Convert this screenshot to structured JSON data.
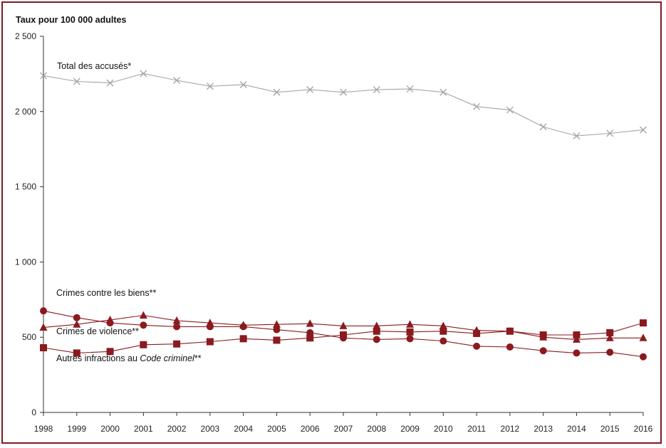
{
  "chart_data": {
    "type": "line",
    "title": "",
    "ylabel": "Taux pour 100 000 adultes",
    "xlabel": "",
    "ylim": [
      0,
      2500
    ],
    "yticks": [
      0,
      500,
      1000,
      1500,
      2000,
      2500
    ],
    "ytick_labels": [
      "0",
      "500",
      "1 000",
      "1 500",
      "2 000",
      "2 500"
    ],
    "x": [
      "1998",
      "1999",
      "2000",
      "2001",
      "2002",
      "2003",
      "2004",
      "2005",
      "2006",
      "2007",
      "2008",
      "2009",
      "2010",
      "2011",
      "2012",
      "2013",
      "2014",
      "2015",
      "2016"
    ],
    "grid": false,
    "legend": "inline-labels",
    "series": [
      {
        "name": "Total des accusés*",
        "marker": "x",
        "color": "#a6a6a6",
        "values": [
          2238,
          2200,
          2190,
          2252,
          2207,
          2168,
          2178,
          2128,
          2145,
          2128,
          2145,
          2150,
          2128,
          2033,
          2010,
          1898,
          1838,
          1855,
          1878
        ]
      },
      {
        "name": "Crimes contre les biens**",
        "marker": "circle",
        "color": "#8b1a1f",
        "values": [
          675,
          630,
          595,
          580,
          570,
          570,
          570,
          550,
          530,
          495,
          485,
          490,
          475,
          440,
          435,
          410,
          395,
          400,
          370
        ]
      },
      {
        "name": "Crimes de violence**",
        "marker": "triangle",
        "color": "#8b1a1f",
        "values": [
          565,
          585,
          615,
          645,
          610,
          595,
          580,
          585,
          590,
          575,
          575,
          585,
          575,
          545,
          540,
          500,
          485,
          495,
          495
        ]
      },
      {
        "name_prefix": "Autres infractions au ",
        "name_italic": "Code criminel",
        "name_suffix": "**",
        "marker": "square",
        "color": "#8b1a1f",
        "values": [
          430,
          395,
          405,
          450,
          455,
          470,
          490,
          480,
          495,
          515,
          540,
          535,
          540,
          525,
          540,
          515,
          515,
          530,
          595
        ]
      }
    ]
  }
}
